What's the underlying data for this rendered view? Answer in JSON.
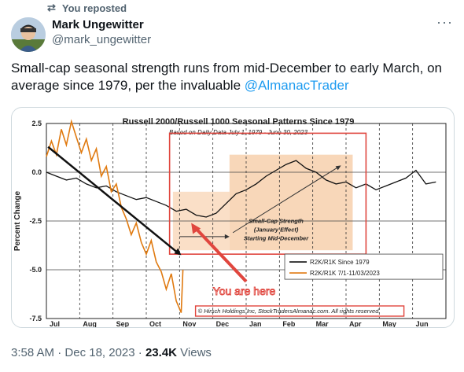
{
  "repost": {
    "icon": "repost-icon",
    "label": "You reposted"
  },
  "author": {
    "name": "Mark Ungewitter",
    "handle": "@mark_ungewitter"
  },
  "tweet": {
    "text_before": "Small-cap seasonal strength runs from mid-December to early March, on average since 1979, per the invaluable ",
    "mention": "@AlmanacTrader"
  },
  "meta": {
    "time": "3:58 AM",
    "sep1": " · ",
    "date": "Dec 18, 2023",
    "sep2": " · ",
    "views_count": "23.4K",
    "views_label": " Views"
  },
  "chart_data": {
    "type": "line",
    "title": "Russell 2000/Russell 1000 Seasonal Patterns Since 1979",
    "subtitle": "Based on Daily Data July 1, 1979 - June 30, 2023",
    "ylabel": "Percent Change",
    "xlabel": "",
    "ylim": [
      -7.5,
      2.5
    ],
    "yticks": [
      "2.5",
      "0.0",
      "-2.5",
      "-5.0",
      "-7.5"
    ],
    "ytick_values": [
      2.5,
      0.0,
      -2.5,
      -5.0,
      -7.5
    ],
    "categories": [
      "Jul",
      "Aug",
      "Sep",
      "Oct",
      "Nov",
      "Dec",
      "Jan",
      "Feb",
      "Mar",
      "Apr",
      "May",
      "Jun"
    ],
    "grid": true,
    "legend_position": "bottom-right",
    "series": [
      {
        "name": "R2K/R1K Since 1979",
        "color": "#111111",
        "x": [
          0,
          0.3,
          0.6,
          0.9,
          1.2,
          1.5,
          1.8,
          2.1,
          2.4,
          2.7,
          3.0,
          3.3,
          3.6,
          3.9,
          4.2,
          4.5,
          4.8,
          5.1,
          5.4,
          5.7,
          6.0,
          6.3,
          6.6,
          6.9,
          7.2,
          7.5,
          7.8,
          8.1,
          8.4,
          8.7,
          9.0,
          9.3,
          9.6,
          9.9,
          10.2,
          10.5,
          10.8,
          11.1,
          11.4,
          11.7
        ],
        "y": [
          0.0,
          -0.2,
          -0.4,
          -0.3,
          -0.6,
          -0.8,
          -0.7,
          -1.0,
          -1.2,
          -1.4,
          -1.3,
          -1.5,
          -1.7,
          -2.0,
          -1.9,
          -2.2,
          -2.3,
          -2.1,
          -1.6,
          -1.1,
          -0.9,
          -0.6,
          -0.2,
          0.1,
          0.4,
          0.6,
          0.2,
          0.0,
          -0.4,
          -0.6,
          -0.5,
          -0.8,
          -0.6,
          -0.9,
          -0.7,
          -0.5,
          -0.3,
          0.1,
          -0.6,
          -0.5
        ]
      },
      {
        "name": "R2K/R1K 7/1-11/03/2023",
        "color": "#e07a10",
        "x": [
          0,
          0.15,
          0.3,
          0.45,
          0.6,
          0.75,
          0.9,
          1.05,
          1.2,
          1.35,
          1.5,
          1.65,
          1.8,
          1.95,
          2.1,
          2.25,
          2.4,
          2.55,
          2.7,
          2.85,
          3.0,
          3.15,
          3.3,
          3.45,
          3.6,
          3.75,
          3.9,
          4.05,
          4.1
        ],
        "y": [
          0.8,
          1.6,
          0.9,
          2.2,
          1.4,
          2.6,
          1.8,
          1.0,
          1.7,
          0.6,
          1.2,
          -0.2,
          0.3,
          -1.0,
          -0.6,
          -1.8,
          -2.4,
          -3.2,
          -2.6,
          -3.6,
          -4.2,
          -3.5,
          -4.6,
          -5.1,
          -6.0,
          -5.2,
          -6.6,
          -7.2,
          -5.0
        ]
      }
    ],
    "annotations": {
      "strength_box_text": [
        "Small-Cap Strength",
        "(January Effect)",
        "Starting Mid-December"
      ],
      "you_are_here": "You are here",
      "copyright": "© Hirsch Holdings Inc, StockTradersAlmanac.com. All rights reserved."
    }
  },
  "colors": {
    "accent": "#1d9bf0",
    "muted": "#536471",
    "highlight_red": "#e0463e",
    "shade_orange": "#f6c9a1"
  }
}
